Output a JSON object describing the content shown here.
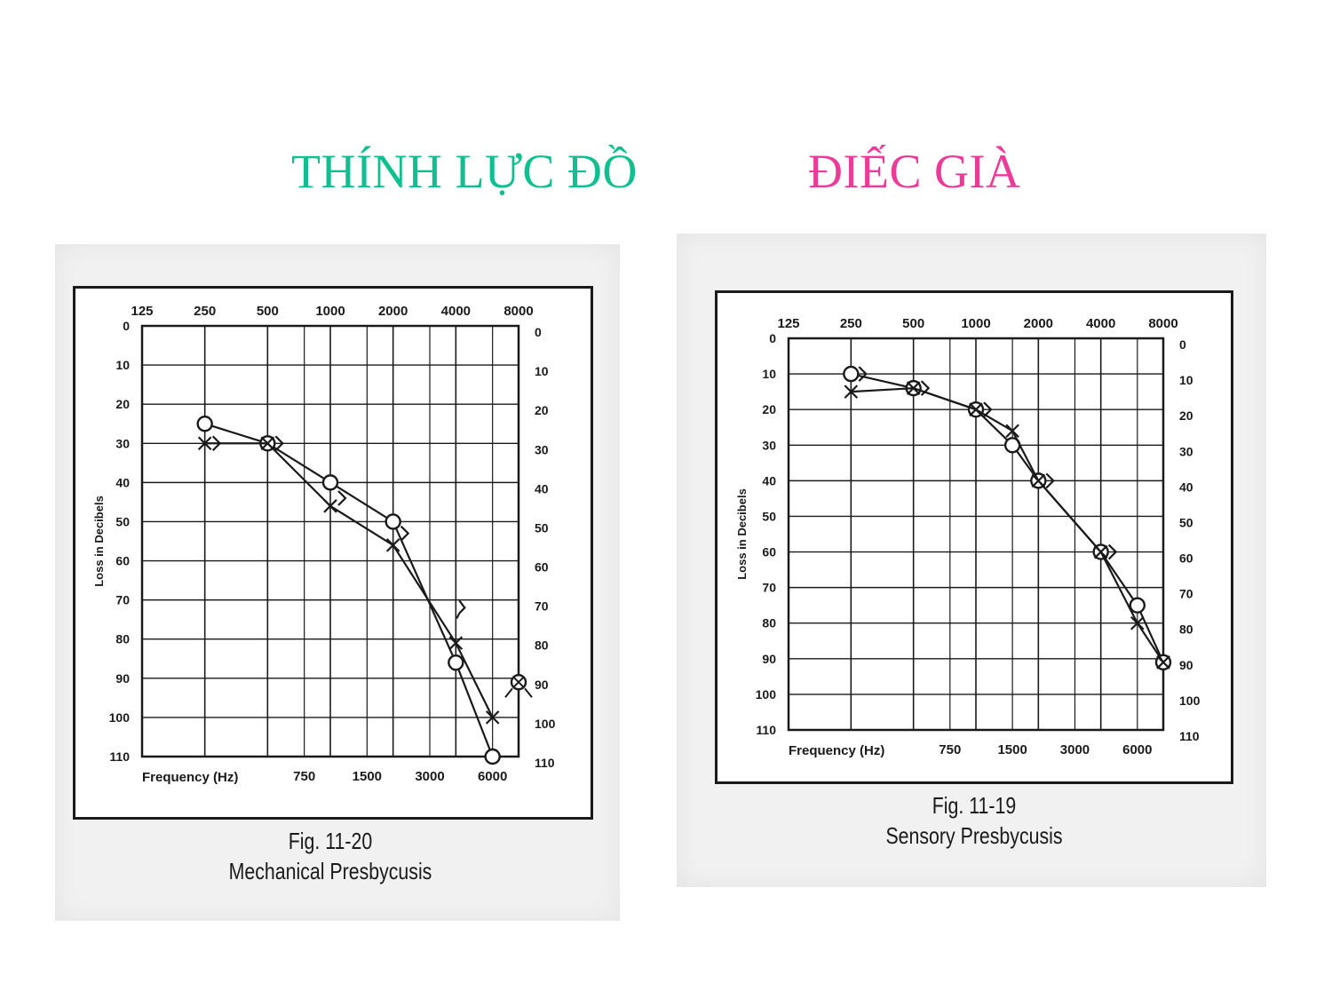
{
  "slide": {
    "title_left": "THÍNH LỰC ĐỒ",
    "title_right": "ĐIẾC GIÀ",
    "colors": {
      "title_left": "#0fbf8f",
      "title_right": "#ec3a98",
      "ink": "#1a1a1a"
    }
  },
  "chart_data": [
    {
      "type": "line",
      "chart_kind": "audiogram",
      "figure_number": "Fig. 11-20",
      "subtitle": "Mechanical Presbycusis",
      "xlabel": "Frequency (Hz)",
      "ylabel": "Loss in Decibels",
      "x_scale": "log",
      "y_inverted": true,
      "xlim": [
        125,
        8000
      ],
      "ylim": [
        0,
        110
      ],
      "grid": true,
      "top_ticks": [
        "125",
        "250",
        "500",
        "1000",
        "2000",
        "4000",
        "8000"
      ],
      "bottom_ticks": [
        "750",
        "1500",
        "3000",
        "6000"
      ],
      "y_ticks": [
        "0",
        "10",
        "20",
        "30",
        "40",
        "50",
        "60",
        "70",
        "80",
        "90",
        "100",
        "110"
      ],
      "series": [
        {
          "marker": "circle",
          "x": [
            250,
            500,
            1000,
            2000,
            4000,
            6000
          ],
          "values": [
            25,
            30,
            40,
            50,
            86,
            110
          ]
        },
        {
          "marker": "cross",
          "x": [
            250,
            500,
            1000,
            2000,
            4000,
            6000
          ],
          "values": [
            30,
            30,
            46,
            56,
            81,
            100
          ]
        },
        {
          "marker": "bracket",
          "x": [
            250,
            500,
            1000,
            2000
          ],
          "values": [
            30,
            30,
            44,
            53
          ]
        },
        {
          "marker": "no-response",
          "x": [
            4000
          ],
          "values": [
            72
          ]
        },
        {
          "marker": "circle-cross-no-response",
          "x": [
            8000
          ],
          "values": [
            91
          ]
        }
      ]
    },
    {
      "type": "line",
      "chart_kind": "audiogram",
      "figure_number": "Fig. 11-19",
      "subtitle": "Sensory Presbycusis",
      "xlabel": "Frequency (Hz)",
      "ylabel": "Loss in Decibels",
      "x_scale": "log",
      "y_inverted": true,
      "xlim": [
        125,
        8000
      ],
      "ylim": [
        0,
        110
      ],
      "grid": true,
      "top_ticks": [
        "125",
        "250",
        "500",
        "1000",
        "2000",
        "4000",
        "8000"
      ],
      "bottom_ticks": [
        "750",
        "1500",
        "3000",
        "6000"
      ],
      "y_ticks": [
        "0",
        "10",
        "20",
        "30",
        "40",
        "50",
        "60",
        "70",
        "80",
        "90",
        "100",
        "110"
      ],
      "series": [
        {
          "marker": "circle",
          "x": [
            250,
            500,
            1000,
            1500,
            2000,
            4000,
            6000,
            8000
          ],
          "values": [
            10,
            14,
            20,
            30,
            40,
            60,
            75,
            91
          ]
        },
        {
          "marker": "cross",
          "x": [
            250,
            500,
            1000,
            1500,
            2000,
            4000,
            6000,
            8000
          ],
          "values": [
            15,
            14,
            20,
            26,
            40,
            60,
            80,
            91
          ]
        },
        {
          "marker": "bracket",
          "x": [
            250,
            500,
            1000,
            2000,
            4000
          ],
          "values": [
            10,
            14,
            20,
            40,
            60
          ]
        }
      ]
    }
  ]
}
